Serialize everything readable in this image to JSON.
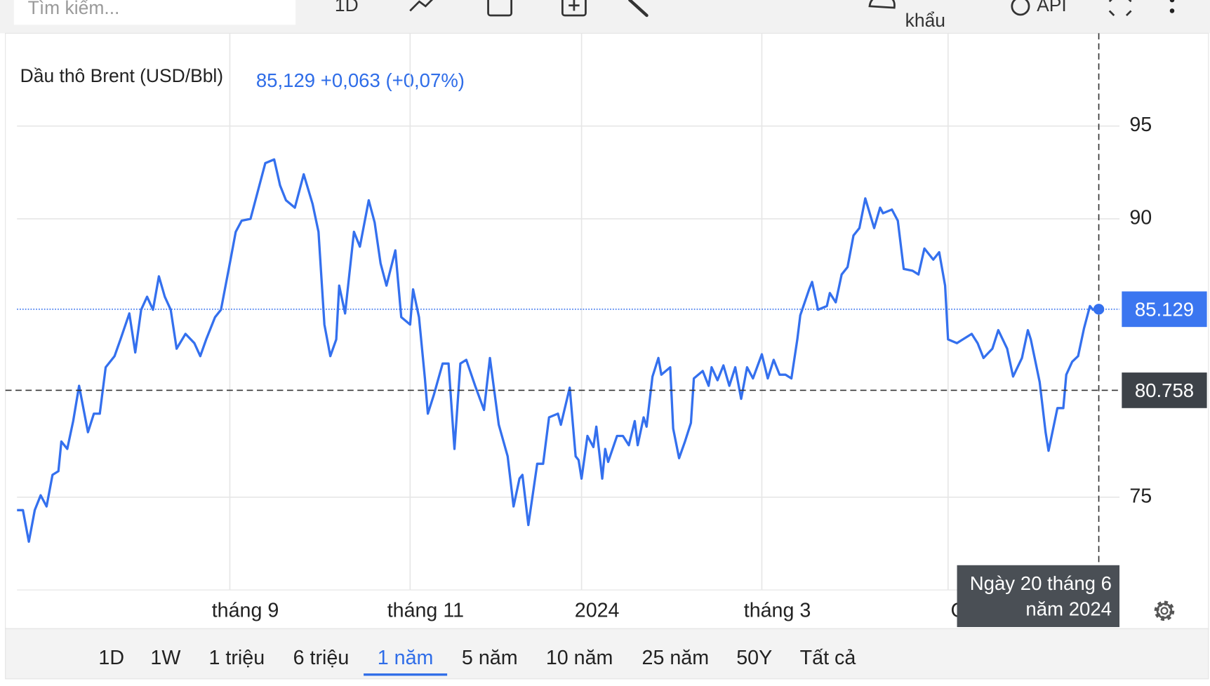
{
  "toolbar": {
    "search_placeholder": "Tìm kiếm...",
    "interval": "1D",
    "export": "khẩu",
    "api": "API"
  },
  "chart_data": {
    "type": "line",
    "title": "Dầu thô Brent (USD/Bbl)",
    "quote": "85,129 +0,063 (+0,07%)",
    "color": "#3470ee",
    "x": [
      0,
      2,
      4,
      6,
      8,
      10,
      12,
      14,
      15,
      17,
      19,
      21,
      24,
      26,
      28,
      30,
      33,
      35,
      38,
      40,
      42,
      44,
      46,
      48,
      50,
      52,
      54,
      57,
      60,
      62,
      64,
      67,
      69,
      72,
      74,
      76,
      79,
      81,
      84,
      87,
      89,
      91,
      94,
      97,
      100,
      102,
      104,
      106,
      108,
      109,
      111,
      114,
      116,
      119,
      121,
      123,
      125,
      128,
      130,
      133,
      134,
      136,
      138,
      139,
      141,
      144,
      146,
      148,
      150,
      152,
      155,
      158,
      160,
      163,
      166,
      168,
      170,
      171,
      173,
      176,
      178,
      180,
      183,
      184,
      187,
      189,
      190,
      191,
      193,
      195,
      196,
      198,
      199,
      200,
      203,
      205,
      207,
      209,
      210,
      212,
      213,
      215,
      217,
      218,
      221,
      222,
      224,
      226,
      228,
      229,
      232,
      234,
      235,
      237,
      239,
      241,
      243,
      245,
      247,
      249,
      252,
      254,
      256,
      258,
      260,
      262,
      264,
      265,
      268,
      269,
      271,
      274,
      275,
      277,
      279,
      281,
      283,
      285,
      287,
      290,
      292,
      293,
      296,
      298,
      300,
      303,
      305,
      307,
      310,
      312,
      314,
      315,
      318,
      320,
      323,
      325,
      327,
      330,
      332,
      335,
      337,
      340,
      342,
      343,
      346,
      348,
      349,
      352,
      354,
      355,
      357,
      359,
      361,
      363,
      364,
      366
    ],
    "values": [
      74.3,
      74.3,
      72.6,
      74.3,
      75.1,
      74.5,
      76.2,
      76.4,
      78.0,
      77.6,
      79.1,
      81.0,
      78.5,
      79.5,
      79.5,
      82.0,
      82.6,
      83.5,
      84.9,
      82.8,
      85.1,
      85.8,
      85.1,
      86.9,
      85.8,
      85.1,
      83.0,
      83.8,
      83.3,
      82.6,
      83.5,
      84.7,
      85.1,
      87.6,
      89.3,
      89.9,
      90.0,
      91.2,
      93.0,
      93.2,
      91.8,
      91.0,
      90.6,
      92.4,
      90.8,
      89.3,
      84.3,
      82.6,
      83.5,
      86.4,
      84.9,
      89.3,
      88.5,
      91.0,
      89.8,
      87.6,
      86.4,
      88.3,
      84.7,
      84.3,
      86.2,
      84.7,
      81.4,
      79.5,
      80.5,
      82.2,
      82.2,
      77.6,
      82.2,
      82.4,
      81.0,
      79.7,
      82.5,
      78.9,
      77.2,
      74.5,
      76.0,
      76.2,
      73.5,
      76.8,
      76.8,
      79.3,
      79.5,
      78.9,
      80.9,
      77.2,
      77.0,
      76.0,
      78.3,
      77.7,
      78.8,
      76.0,
      77.6,
      76.9,
      78.3,
      78.3,
      77.8,
      79.1,
      77.8,
      79.3,
      78.8,
      81.5,
      82.5,
      81.6,
      82.0,
      78.7,
      77.1,
      78.0,
      79.0,
      81.4,
      81.8,
      81.0,
      82.0,
      81.3,
      82.1,
      81.0,
      82.0,
      80.3,
      82.0,
      81.4,
      82.7,
      81.4,
      82.4,
      81.6,
      81.6,
      81.4,
      83.5,
      84.8,
      86.2,
      86.6,
      85.1,
      85.3,
      86.0,
      85.5,
      87.0,
      87.4,
      89.1,
      89.5,
      91.1,
      89.5,
      90.6,
      90.3,
      90.5,
      89.9,
      87.3,
      87.2,
      87.0,
      88.4,
      87.8,
      88.2,
      86.4,
      83.5,
      83.3,
      83.5,
      83.8,
      83.3,
      82.5,
      83.0,
      84.0,
      83.0,
      81.5,
      82.5,
      84.0,
      83.5,
      81.2,
      78.5,
      77.5,
      79.8,
      79.8,
      81.6,
      82.3,
      82.6,
      84.1,
      85.3,
      85.1,
      85.129
    ],
    "xlim": [
      0,
      373
    ],
    "xticks": [
      {
        "value": 72,
        "label": "tháng 9"
      },
      {
        "value": 133,
        "label": "tháng 11"
      },
      {
        "value": 191,
        "label": "2024"
      },
      {
        "value": 252,
        "label": "tháng 3"
      },
      {
        "value": 315,
        "label": "Có"
      }
    ],
    "ylim": [
      70,
      100
    ],
    "yticks": [
      75,
      90,
      95
    ],
    "grid": true,
    "last_price": 85.129,
    "crosshair": {
      "value": 80.758,
      "date": "Ngày 20 tháng 6 năm 2024"
    }
  },
  "ranges": [
    "1D",
    "1W",
    "1 triệu",
    "6 triệu",
    "1 năm",
    "5 năm",
    "10 năm",
    "25 năm",
    "50Y",
    "Tất cả"
  ],
  "active_range": 4
}
